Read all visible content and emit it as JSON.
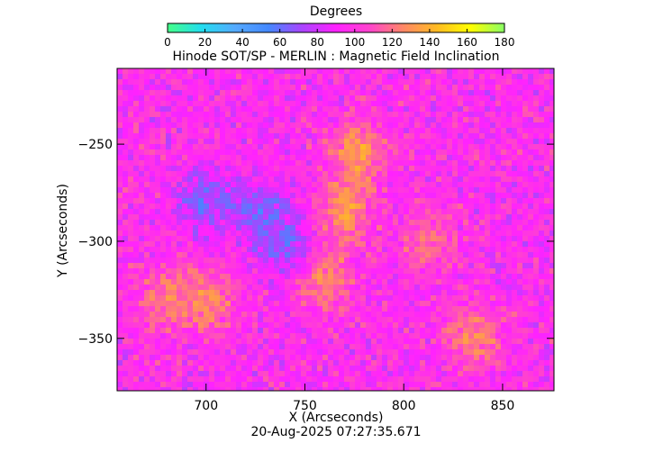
{
  "colorbar": {
    "title": "Degrees",
    "range": [
      0,
      180
    ],
    "ticks": [
      "0",
      "20",
      "40",
      "60",
      "80",
      "100",
      "120",
      "140",
      "160",
      "180"
    ],
    "colors": [
      "#44ff88",
      "#22ddee",
      "#55aaff",
      "#4488ff",
      "#aa44ff",
      "#ff22ff",
      "#ff44cc",
      "#ff8866",
      "#ffbb22",
      "#ffff00",
      "#88ff66"
    ]
  },
  "chart_data": {
    "type": "heatmap",
    "title": "Hinode SOT/SP - MERLIN : Magnetic Field Inclination",
    "xlabel": "X (Arcseconds)",
    "ylabel": "Y (Arcseconds)",
    "xlim": [
      655,
      876
    ],
    "ylim": [
      -377,
      -211
    ],
    "xticks": [
      700,
      750,
      800,
      850
    ],
    "yticks": [
      -250,
      -300,
      -350
    ],
    "x_ticklabels": [
      "700",
      "750",
      "800",
      "850"
    ],
    "y_ticklabels": [
      "−250",
      "−300",
      "−350"
    ],
    "value_range": [
      0,
      180
    ],
    "value_unit": "Degrees",
    "dominant_value": 95,
    "features": [
      {
        "x": 777,
        "y": -255,
        "value": 140
      },
      {
        "x": 770,
        "y": -285,
        "value": 140
      },
      {
        "x": 760,
        "y": -320,
        "value": 135
      },
      {
        "x": 700,
        "y": -280,
        "value": 60
      },
      {
        "x": 728,
        "y": -284,
        "value": 58
      },
      {
        "x": 740,
        "y": -302,
        "value": 62
      },
      {
        "x": 680,
        "y": -330,
        "value": 130
      },
      {
        "x": 700,
        "y": -330,
        "value": 135
      },
      {
        "x": 812,
        "y": -300,
        "value": 125
      },
      {
        "x": 835,
        "y": -350,
        "value": 130
      }
    ]
  },
  "footer": {
    "timestamp": "20-Aug-2025 07:27:35.671"
  }
}
